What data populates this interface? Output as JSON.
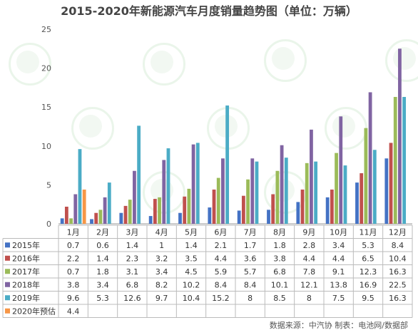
{
  "header": {
    "title": "2015-2020年新能源汽车月度销量趋势图（单位：万辆）",
    "source": "数据来源：中汽协  制表：电池网/数据部"
  },
  "chart_data": {
    "type": "bar",
    "title": "2015-2020年新能源汽车月度销量趋势图（单位：万辆）",
    "xlabel": "",
    "ylabel": "",
    "ylim": [
      0,
      25
    ],
    "yticks": [
      0,
      5,
      10,
      15,
      20,
      25
    ],
    "grid": false,
    "legend": "data-table",
    "categories": [
      "1月",
      "2月",
      "3月",
      "4月",
      "5月",
      "6月",
      "7月",
      "8月",
      "9月",
      "10月",
      "11月",
      "12月"
    ],
    "series": [
      {
        "name": "2015年",
        "color": "#4472c4",
        "values": [
          0.7,
          0.6,
          1.4,
          1.0,
          1.4,
          2.1,
          1.7,
          1.8,
          2.8,
          3.4,
          5.3,
          8.4
        ]
      },
      {
        "name": "2016年",
        "color": "#c0504d",
        "values": [
          2.2,
          1.4,
          2.3,
          3.2,
          3.5,
          4.4,
          3.6,
          3.8,
          4.4,
          4.4,
          6.5,
          10.4
        ]
      },
      {
        "name": "2017年",
        "color": "#9bbb59",
        "values": [
          0.7,
          1.8,
          3.1,
          3.4,
          4.5,
          5.9,
          5.7,
          6.8,
          7.8,
          9.1,
          12.3,
          16.3
        ]
      },
      {
        "name": "2018年",
        "color": "#8064a2",
        "values": [
          3.8,
          3.4,
          6.8,
          8.2,
          10.2,
          8.4,
          8.4,
          10.1,
          12.1,
          13.8,
          16.9,
          22.5
        ]
      },
      {
        "name": "2019年",
        "color": "#4bacc6",
        "values": [
          9.6,
          5.3,
          12.6,
          9.7,
          10.4,
          15.2,
          8,
          8.5,
          8,
          7.5,
          9.5,
          16.3
        ]
      },
      {
        "name": "2020年预估",
        "color": "#f79646",
        "values": [
          4.4,
          null,
          null,
          null,
          null,
          null,
          null,
          null,
          null,
          null,
          null,
          null
        ]
      }
    ]
  }
}
